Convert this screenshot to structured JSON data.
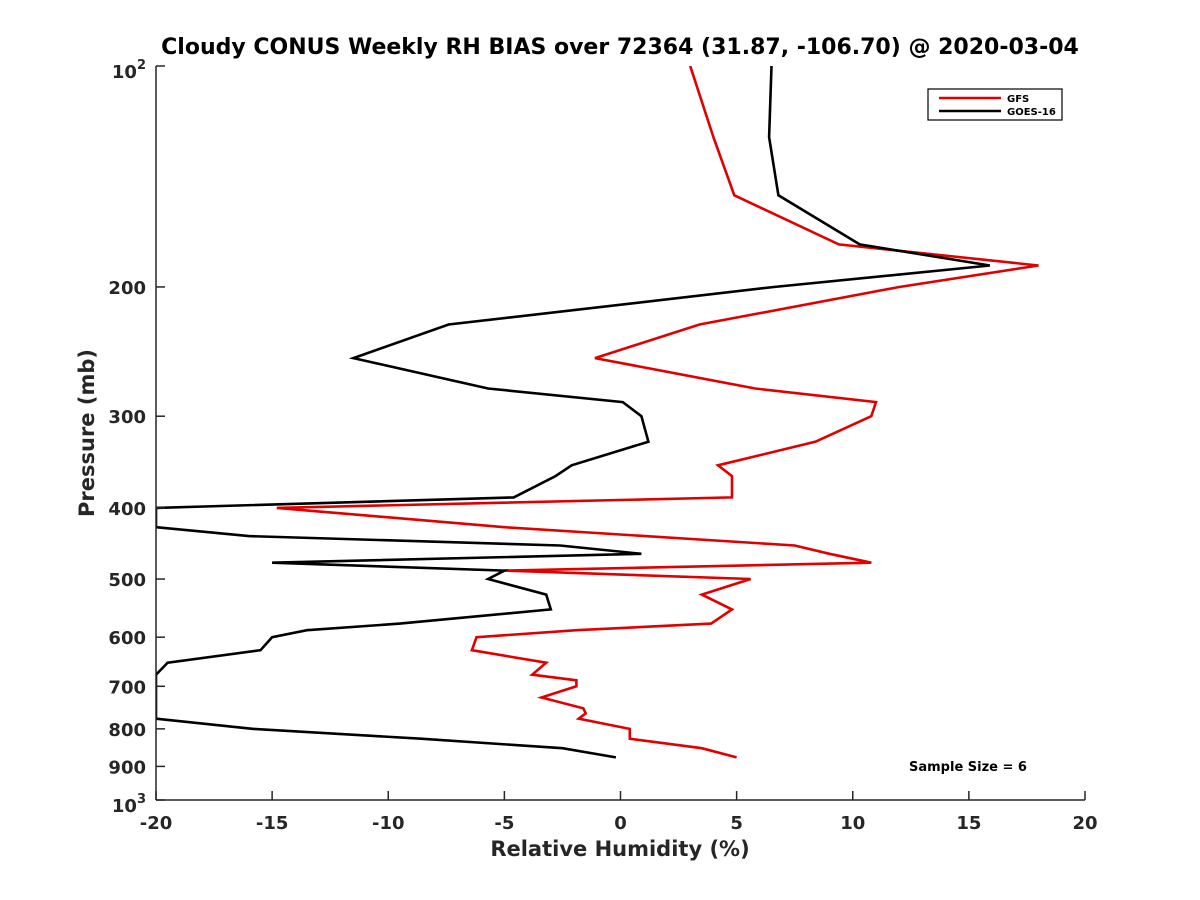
{
  "chart_data": {
    "type": "line",
    "title": "Cloudy CONUS Weekly RH BIAS over 72364 (31.87, -106.70) @ 2020-03-04",
    "xlabel": "Relative Humidity (%)",
    "ylabel": "Pressure (mb)",
    "xlim": [
      -20,
      20
    ],
    "ylim": [
      100,
      1000
    ],
    "y_scale": "log",
    "y_reversed": true,
    "xticks": [
      -20,
      -15,
      -10,
      -5,
      0,
      5,
      10,
      15,
      20
    ],
    "yticks": [
      100,
      200,
      300,
      400,
      500,
      600,
      700,
      800,
      900,
      1000
    ],
    "ytick_labels": [
      "10^2",
      "200",
      "300",
      "400",
      "500",
      "600",
      "700",
      "800",
      "900",
      "10^3"
    ],
    "grid": false,
    "legend_position": "top-right",
    "annotation": "Sample Size = 6",
    "series": [
      {
        "name": "GFS",
        "color": "#e00000",
        "points": [
          [
            3.0,
            100
          ],
          [
            4.0,
            125
          ],
          [
            4.9,
            150
          ],
          [
            9.4,
            175
          ],
          [
            18.0,
            187
          ],
          [
            12.0,
            200
          ],
          [
            3.4,
            225
          ],
          [
            -1.1,
            250
          ],
          [
            5.8,
            275
          ],
          [
            11.0,
            287
          ],
          [
            10.8,
            300
          ],
          [
            8.4,
            325
          ],
          [
            4.2,
            350
          ],
          [
            4.8,
            362
          ],
          [
            4.8,
            387
          ],
          [
            -14.8,
            400
          ],
          [
            -5.0,
            425
          ],
          [
            7.5,
            450
          ],
          [
            9.0,
            462
          ],
          [
            10.8,
            475
          ],
          [
            -5.0,
            487
          ],
          [
            5.6,
            500
          ],
          [
            3.5,
            525
          ],
          [
            4.8,
            550
          ],
          [
            3.9,
            575
          ],
          [
            -1.9,
            587
          ],
          [
            -6.2,
            600
          ],
          [
            -6.4,
            625
          ],
          [
            -3.2,
            650
          ],
          [
            -3.8,
            675
          ],
          [
            -1.9,
            687
          ],
          [
            -1.9,
            700
          ],
          [
            -3.4,
            725
          ],
          [
            -1.6,
            750
          ],
          [
            -1.5,
            762
          ],
          [
            -1.8,
            775
          ],
          [
            0.4,
            800
          ],
          [
            0.4,
            825
          ],
          [
            3.5,
            850
          ],
          [
            5.0,
            875
          ]
        ]
      },
      {
        "name": "GOES-16",
        "color": "#000000",
        "points": [
          [
            6.5,
            100
          ],
          [
            6.4,
            125
          ],
          [
            6.8,
            150
          ],
          [
            10.3,
            175
          ],
          [
            15.9,
            187
          ],
          [
            6.6,
            200
          ],
          [
            -7.4,
            225
          ],
          [
            -11.5,
            250
          ],
          [
            -5.7,
            275
          ],
          [
            0.1,
            287
          ],
          [
            0.9,
            300
          ],
          [
            1.2,
            325
          ],
          [
            -2.1,
            350
          ],
          [
            -2.8,
            362
          ],
          [
            -4.6,
            387
          ],
          [
            -20.0,
            400
          ],
          [
            -20.0,
            425
          ],
          [
            -16.0,
            437
          ],
          [
            -2.6,
            450
          ],
          [
            0.9,
            462
          ],
          [
            -15.0,
            475
          ],
          [
            -5.0,
            487
          ],
          [
            -5.7,
            500
          ],
          [
            -3.2,
            525
          ],
          [
            -3.0,
            550
          ],
          [
            -9.5,
            575
          ],
          [
            -13.5,
            587
          ],
          [
            -15.0,
            600
          ],
          [
            -15.5,
            625
          ],
          [
            -19.5,
            650
          ],
          [
            -20.0,
            675
          ],
          [
            -20.0,
            775
          ],
          [
            -15.8,
            800
          ],
          [
            -8.6,
            825
          ],
          [
            -2.5,
            850
          ],
          [
            -0.2,
            875
          ]
        ]
      }
    ]
  }
}
